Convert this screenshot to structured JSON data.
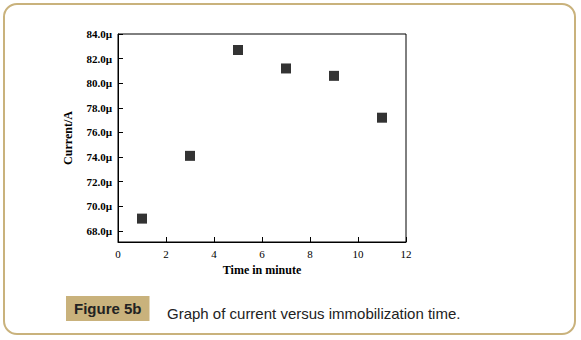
{
  "chart_data": {
    "type": "scatter",
    "title": "Figure 5b",
    "subtitle": "Graph of current versus immobilization time.",
    "x_label": "Time in minute",
    "y_label": "Current/A",
    "x": [
      1,
      3,
      5,
      7,
      9,
      11
    ],
    "values": [
      6.9e-05,
      7.41e-05,
      8.27e-05,
      8.12e-05,
      8.06e-05,
      7.72e-05
    ],
    "color": "#000000",
    "marker": "square",
    "xlim": [
      0,
      12
    ],
    "xticks": [
      0,
      2,
      4,
      6,
      8,
      10,
      12
    ],
    "ylim": [
      6.71e-05,
      8.4e-05
    ],
    "yticks": [
      {
        "value": 6.8e-05,
        "label": "68.0µ"
      },
      {
        "value": 7e-05,
        "label": "70.0µ"
      },
      {
        "value": 7.2e-05,
        "label": "72.0µ"
      },
      {
        "value": 7.4e-05,
        "label": "74.0µ"
      },
      {
        "value": 7.6e-05,
        "label": "76.0µ"
      },
      {
        "value": 7.8e-05,
        "label": "78.0µ"
      },
      {
        "value": 8e-05,
        "label": "80.0µ"
      },
      {
        "value": 8.2e-05,
        "label": "82.0µ"
      },
      {
        "value": 8.4e-05,
        "label": "84.0µ"
      }
    ],
    "grid": false
  }
}
